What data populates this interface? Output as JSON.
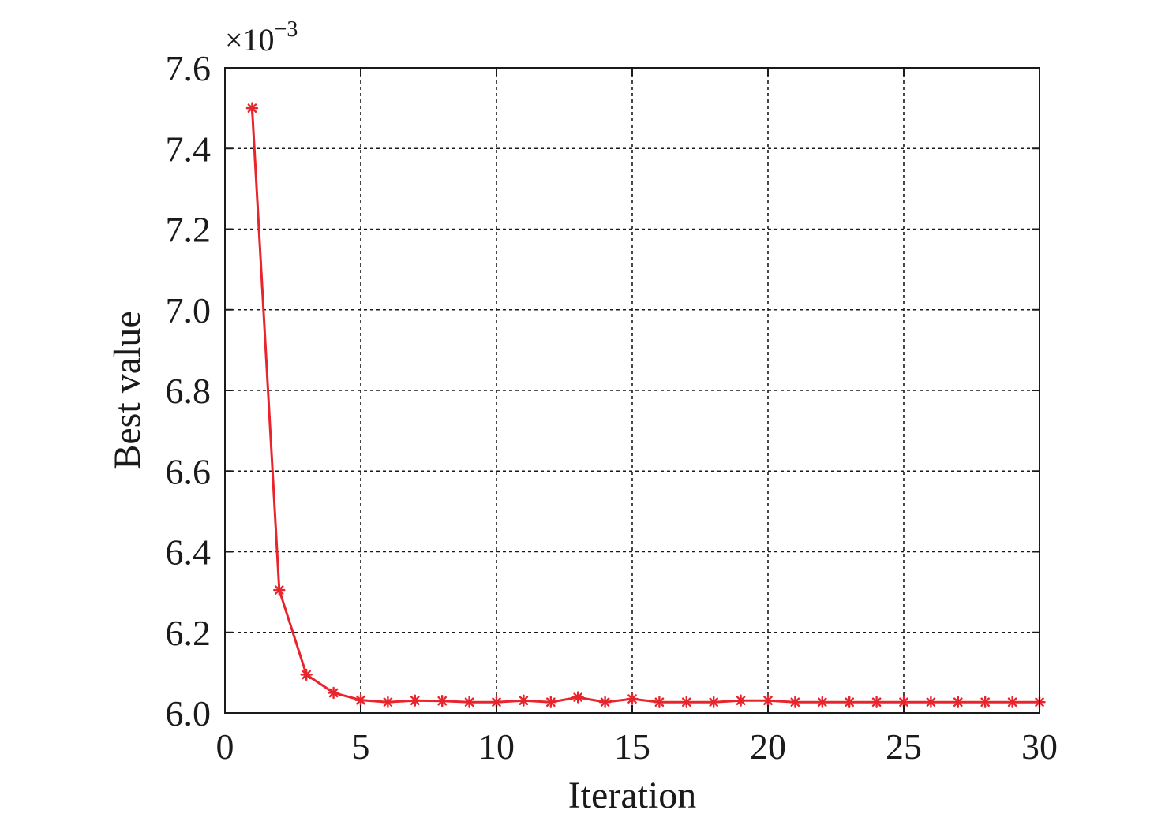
{
  "chart_data": {
    "type": "line",
    "title": "",
    "xlabel": "Iteration",
    "ylabel": "Best value",
    "y_multiplier": "×10",
    "y_multiplier_exponent": "−3",
    "xlim": [
      0,
      30
    ],
    "ylim": [
      6.0,
      7.6
    ],
    "x_ticks": [
      0,
      5,
      10,
      15,
      20,
      25,
      30
    ],
    "y_ticks": [
      6.0,
      6.2,
      6.4,
      6.6,
      6.8,
      7.0,
      7.2,
      7.4,
      7.6
    ],
    "x_tick_labels": [
      "0",
      "5",
      "10",
      "15",
      "20",
      "25",
      "30"
    ],
    "y_tick_labels": [
      "6.0",
      "6.2",
      "6.4",
      "6.6",
      "6.8",
      "7.0",
      "7.2",
      "7.4",
      "7.6"
    ],
    "grid": true,
    "legend": "none",
    "series": [
      {
        "color": "#e8242c",
        "marker": "asterisk",
        "x": [
          1,
          2,
          3,
          4,
          5,
          6,
          7,
          8,
          9,
          10,
          11,
          12,
          13,
          14,
          15,
          16,
          17,
          18,
          19,
          20,
          21,
          22,
          23,
          24,
          25,
          26,
          27,
          28,
          29,
          30
        ],
        "y": [
          7.5,
          6.305,
          6.095,
          6.05,
          6.032,
          6.027,
          6.031,
          6.03,
          6.027,
          6.027,
          6.031,
          6.027,
          6.039,
          6.027,
          6.035,
          6.027,
          6.027,
          6.027,
          6.031,
          6.031,
          6.027,
          6.027,
          6.027,
          6.027,
          6.027,
          6.027,
          6.027,
          6.027,
          6.027,
          6.027
        ]
      }
    ]
  }
}
